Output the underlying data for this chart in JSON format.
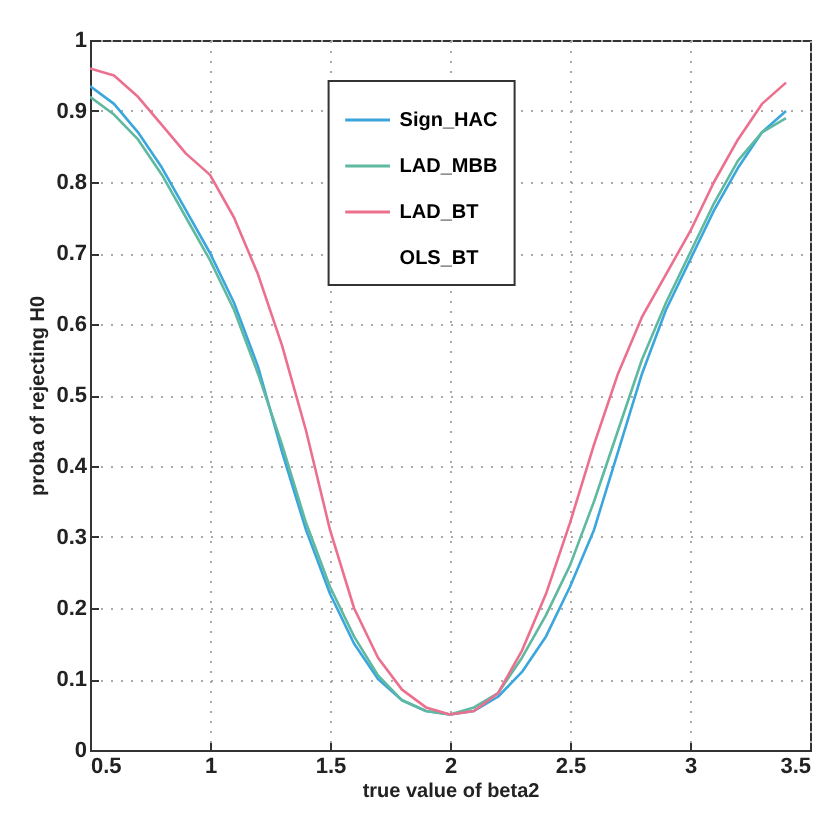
{
  "chart_data": {
    "type": "line",
    "xlabel": "true value of beta2",
    "ylabel": "proba of rejecting H0",
    "x": [
      0.5,
      0.6,
      0.7,
      0.8,
      0.9,
      1.0,
      1.1,
      1.2,
      1.3,
      1.4,
      1.5,
      1.6,
      1.7,
      1.8,
      1.9,
      2.0,
      2.1,
      2.2,
      2.3,
      2.4,
      2.5,
      2.6,
      2.7,
      2.8,
      2.9,
      3.0,
      3.1,
      3.2,
      3.3,
      3.4
    ],
    "series": [
      {
        "name": "Sign_HAC",
        "color": "#3aa6dc",
        "values": [
          0.935,
          0.91,
          0.87,
          0.82,
          0.76,
          0.7,
          0.63,
          0.54,
          0.42,
          0.31,
          0.22,
          0.15,
          0.1,
          0.07,
          0.055,
          0.05,
          0.055,
          0.075,
          0.11,
          0.16,
          0.23,
          0.31,
          0.42,
          0.53,
          0.62,
          0.69,
          0.76,
          0.82,
          0.87,
          0.9
        ]
      },
      {
        "name": "LAD_MBB",
        "color": "#5fb8a0",
        "values": [
          0.92,
          0.895,
          0.86,
          0.81,
          0.75,
          0.69,
          0.62,
          0.53,
          0.43,
          0.32,
          0.23,
          0.16,
          0.105,
          0.07,
          0.055,
          0.05,
          0.06,
          0.08,
          0.13,
          0.19,
          0.26,
          0.35,
          0.45,
          0.55,
          0.63,
          0.7,
          0.77,
          0.83,
          0.87,
          0.89
        ]
      },
      {
        "name": "LAD_BT",
        "color": "#ec6f8e",
        "values": [
          0.96,
          0.95,
          0.92,
          0.88,
          0.84,
          0.81,
          0.75,
          0.67,
          0.57,
          0.45,
          0.31,
          0.2,
          0.13,
          0.085,
          0.06,
          0.05,
          0.055,
          0.08,
          0.14,
          0.22,
          0.32,
          0.43,
          0.53,
          0.61,
          0.67,
          0.73,
          0.8,
          0.86,
          0.91,
          0.94
        ]
      },
      {
        "name": "OLS_BT",
        "values": [
          null,
          null,
          null,
          null,
          null,
          null,
          null,
          null,
          null,
          null,
          null,
          null,
          null,
          null,
          null,
          null,
          null,
          null,
          null,
          null,
          null,
          null,
          null,
          null,
          null,
          null,
          null,
          null,
          null,
          null
        ]
      }
    ],
    "xlim": [
      0.5,
      3.5
    ],
    "xticks": [
      0.5,
      1,
      1.5,
      2,
      2.5,
      3,
      3.5
    ],
    "ylim": [
      0,
      1
    ],
    "yticks": [
      0,
      0.1,
      0.2,
      0.3,
      0.4,
      0.5,
      0.6,
      0.7,
      0.8,
      0.9,
      1
    ],
    "grid": true,
    "legend": "top"
  }
}
